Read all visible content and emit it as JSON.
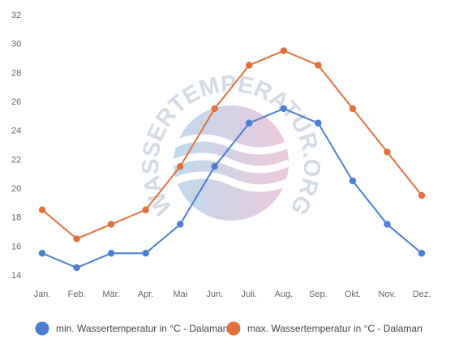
{
  "chart_data": {
    "type": "line",
    "categories": [
      "Jan.",
      "Feb.",
      "Mär.",
      "Apr.",
      "Mai",
      "Jun.",
      "Juli.",
      "Aug.",
      "Sep.",
      "Okt.",
      "Nov.",
      "Dez."
    ],
    "y_ticks": [
      "14",
      "16",
      "18",
      "20",
      "22",
      "24",
      "26",
      "28",
      "30",
      "32"
    ],
    "ylim": [
      14,
      32
    ],
    "grid": false,
    "legend_position": "bottom",
    "series": [
      {
        "name": "min. Wassertemperatur in °C - Dalaman",
        "color": "#4a7fd4",
        "values": [
          15.5,
          14.5,
          15.5,
          15.5,
          17.5,
          21.5,
          24.5,
          25.5,
          24.5,
          20.5,
          17.5,
          15.5
        ]
      },
      {
        "name": "max. Wassertemperatur in °C - Dalaman",
        "color": "#e2703a",
        "values": [
          18.5,
          16.5,
          17.5,
          18.5,
          21.5,
          25.5,
          28.5,
          29.5,
          28.5,
          25.5,
          22.5,
          19.5
        ]
      }
    ]
  },
  "watermark": {
    "text": "WASSERTEMPERATUR.ORG",
    "color_left": "#a9cde9",
    "color_right": "#e8b7cd"
  }
}
